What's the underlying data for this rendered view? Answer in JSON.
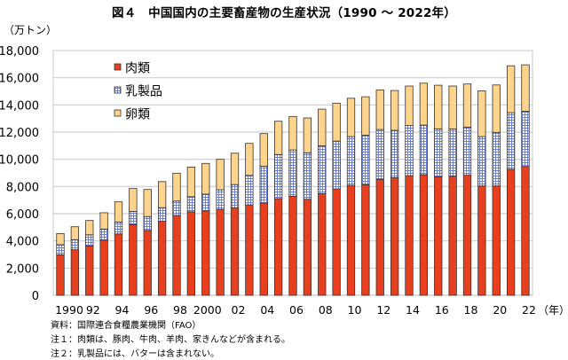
{
  "title": "図４　中国国内の主要畜産物の生産状況（1990 ～ 2022年）",
  "notes": {
    "source": "資料：国際連合食糧農業機関（FAO）",
    "note1": "注１：肉類は、豚肉、牛肉、羊肉、家きんなどが含まれる。",
    "note2": "注２：乳製品には、バターは含まれない。"
  },
  "chart_data": {
    "type": "bar",
    "stacked": true,
    "title": "図４　中国国内の主要畜産物の生産状況（1990 ～ 2022年）",
    "xlabel": "（年）",
    "ylabel": "（万トン）",
    "ylim": [
      0,
      18000
    ],
    "yticks": [
      0,
      2000,
      4000,
      6000,
      8000,
      10000,
      12000,
      14000,
      16000,
      18000
    ],
    "ytick_labels": [
      "0",
      "2,000",
      "4,000",
      "6,000",
      "8,000",
      "10,000",
      "12,000",
      "14,000",
      "16,000",
      "18,000"
    ],
    "grid": true,
    "legend_position": "top-left",
    "categories": [
      1990,
      1991,
      1992,
      1993,
      1994,
      1995,
      1996,
      1997,
      1998,
      1999,
      2000,
      2001,
      2002,
      2003,
      2004,
      2005,
      2006,
      2007,
      2008,
      2009,
      2010,
      2011,
      2012,
      2013,
      2014,
      2015,
      2016,
      2017,
      2018,
      2019,
      2020,
      2021,
      2022
    ],
    "xtick_labels": [
      {
        "year": 1990,
        "label": "1990"
      },
      {
        "year": 1992,
        "label": "92"
      },
      {
        "year": 1994,
        "label": "94"
      },
      {
        "year": 1996,
        "label": "96"
      },
      {
        "year": 1998,
        "label": "98"
      },
      {
        "year": 2000,
        "label": "2000"
      },
      {
        "year": 2002,
        "label": "02"
      },
      {
        "year": 2004,
        "label": "04"
      },
      {
        "year": 2006,
        "label": "06"
      },
      {
        "year": 2008,
        "label": "08"
      },
      {
        "year": 2010,
        "label": "10"
      },
      {
        "year": 2012,
        "label": "12"
      },
      {
        "year": 2014,
        "label": "14"
      },
      {
        "year": 2016,
        "label": "16"
      },
      {
        "year": 2018,
        "label": "18"
      },
      {
        "year": 2020,
        "label": "20"
      },
      {
        "year": 2022,
        "label": "22"
      }
    ],
    "series": [
      {
        "name": "肉類",
        "color": "#e8401f",
        "pattern": "solid",
        "values": [
          2980,
          3350,
          3630,
          4060,
          4510,
          5200,
          4770,
          5440,
          5870,
          6140,
          6200,
          6320,
          6440,
          6650,
          6780,
          7110,
          7280,
          7060,
          7480,
          7820,
          8080,
          8130,
          8520,
          8650,
          8800,
          8870,
          8720,
          8760,
          8830,
          8040,
          8040,
          9260,
          9470
        ]
      },
      {
        "name": "乳製品",
        "color": "#5a6fd0",
        "pattern": "grid",
        "values": [
          740,
          740,
          820,
          810,
          880,
          960,
          1020,
          1000,
          1060,
          1110,
          1240,
          1440,
          1700,
          2170,
          2720,
          3240,
          3410,
          3420,
          3520,
          3520,
          3590,
          3650,
          3670,
          3480,
          3680,
          3650,
          3520,
          3480,
          3540,
          3630,
          3940,
          4170,
          4070
        ]
      },
      {
        "name": "卵類",
        "color": "#fdd48c",
        "pattern": "solid",
        "values": [
          820,
          950,
          1050,
          1200,
          1480,
          1690,
          1990,
          1920,
          2050,
          2180,
          2260,
          2240,
          2310,
          2350,
          2390,
          2450,
          2460,
          2560,
          2690,
          2790,
          2820,
          2820,
          2910,
          2930,
          2910,
          3080,
          3210,
          3150,
          3170,
          3370,
          3490,
          3450,
          3410
        ]
      }
    ]
  }
}
